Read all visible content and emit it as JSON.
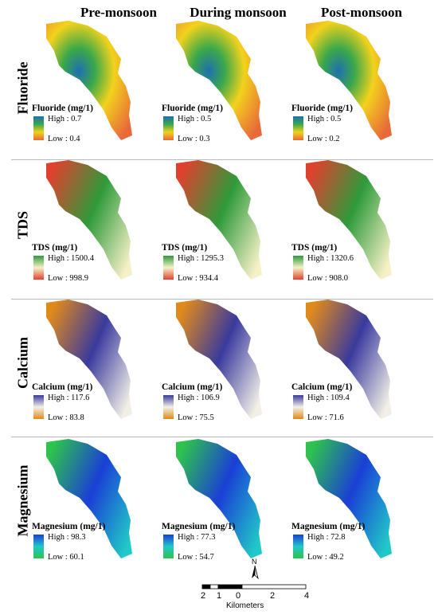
{
  "columns": [
    "Pre-monsoon",
    "During monsoon",
    "Post-monsoon"
  ],
  "rows": [
    {
      "label": "Fluoride",
      "legend_title": "Fluoride (mg/1)",
      "colors": {
        "high": "#1f6fb0",
        "mid": "#f2d21c",
        "low": "#e8683a",
        "upper": "#3aa84a"
      },
      "values": [
        {
          "high": "High : 0.7",
          "low": "Low : 0.4"
        },
        {
          "high": "High : 0.5",
          "low": "Low : 0.3"
        },
        {
          "high": "High : 0.5",
          "low": "Low : 0.2"
        }
      ]
    },
    {
      "label": "TDS",
      "legend_title": "TDS (mg/1)",
      "colors": {
        "high": "#2e9a3a",
        "mid": "#f6f0c8",
        "low": "#e0412e"
      },
      "values": [
        {
          "high": "High : 1500.4",
          "low": "Low : 998.9"
        },
        {
          "high": "High : 1295.3",
          "low": "Low : 934.4"
        },
        {
          "high": "High : 1320.6",
          "low": "Low : 908.0"
        }
      ]
    },
    {
      "label": "Calcium",
      "legend_title": "Calcium (mg/1)",
      "colors": {
        "high": "#3a3a9e",
        "mid": "#f2f0e6",
        "low": "#e08a1c"
      },
      "values": [
        {
          "high": "High : 117.6",
          "low": "Low : 83.8"
        },
        {
          "high": "High : 106.9",
          "low": "Low : 75.5"
        },
        {
          "high": "High : 109.4",
          "low": "Low : 71.6"
        }
      ]
    },
    {
      "label": "Magnesium",
      "legend_title": "Magnesium (mg/1)",
      "colors": {
        "high": "#1a3fd6",
        "mid": "#21c8c8",
        "low": "#2ec24e"
      },
      "values": [
        {
          "high": "High : 98.3",
          "low": "Low : 60.1"
        },
        {
          "high": "High : 77.3",
          "low": "Low : 54.7"
        },
        {
          "high": "High : 72.8",
          "low": "Low : 49.2"
        }
      ]
    }
  ],
  "scale": {
    "labels": [
      "2",
      "1",
      "0",
      "2",
      "4"
    ],
    "unit": "Kilometers"
  },
  "north": "N"
}
